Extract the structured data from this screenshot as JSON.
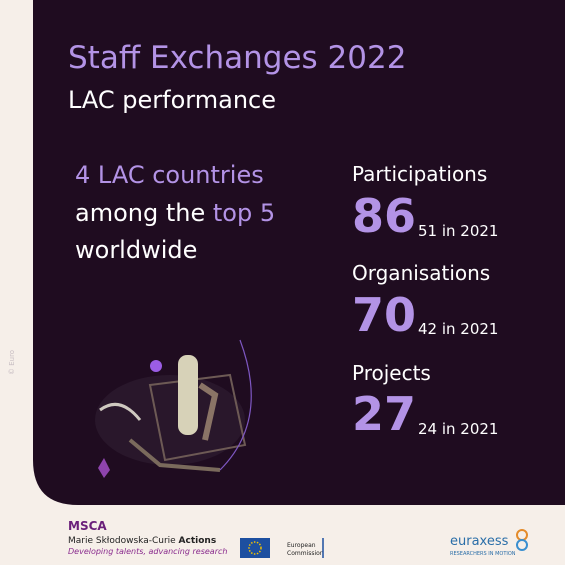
{
  "header": {
    "title": "Staff Exchanges 2022",
    "subtitle": "LAC performance"
  },
  "highlight": {
    "line1": "4 LAC countries",
    "line2": [
      "among the ",
      "top 5"
    ],
    "line3": "worldwide"
  },
  "stats": [
    {
      "label": "Participations",
      "value": "86",
      "previous": "51 in 2021"
    },
    {
      "label": "Organisations",
      "value": "70",
      "previous": "42 in 2021"
    },
    {
      "label": "Projects",
      "value": "27",
      "previous": "24 in 2021"
    }
  ],
  "credit": "© Euro",
  "footer": {
    "msca": "MSCA",
    "name": [
      "Marie Skłodowska-Curie ",
      "Actions"
    ],
    "tagline": "Developing talents, advancing research",
    "commission": [
      "European",
      "Commission"
    ],
    "euraxess": "euraxess",
    "euraxess_tagline": "RESEARCHERS IN MOTION"
  }
}
